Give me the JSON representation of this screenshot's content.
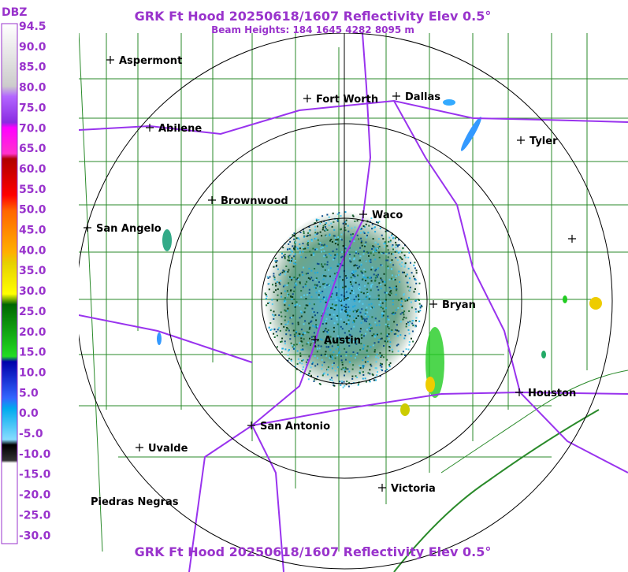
{
  "title": "GRK Ft Hood 20250618/1607 Reflectivity Elev 0.5°",
  "subtitle": "Beam Heights: 184 1645 4282 8095 m",
  "footer_title": "GRK Ft Hood 20250618/1607 Reflectivity Elev 0.5°",
  "legend": {
    "unit": "DBZ",
    "labels": [
      "94.5",
      "90.0",
      "85.0",
      "80.0",
      "75.0",
      "70.0",
      "65.0",
      "60.0",
      "55.0",
      "50.0",
      "45.0",
      "40.0",
      "35.0",
      "30.0",
      "25.0",
      "20.0",
      "15.0",
      "10.0",
      "5.0",
      "0.0",
      "-5.0",
      "-10.0",
      "-15.0",
      "-20.0",
      "-25.0",
      "-30.0"
    ]
  },
  "cities": [
    "Aspermont",
    "Fort Worth",
    "Dallas",
    "Abilene",
    "Tyler",
    "Brownwood",
    "Waco",
    "San Angelo",
    "Bryan",
    "Austin",
    "Houston",
    "San Antonio",
    "Uvalde",
    "Victoria",
    "Piedras Negras"
  ]
}
